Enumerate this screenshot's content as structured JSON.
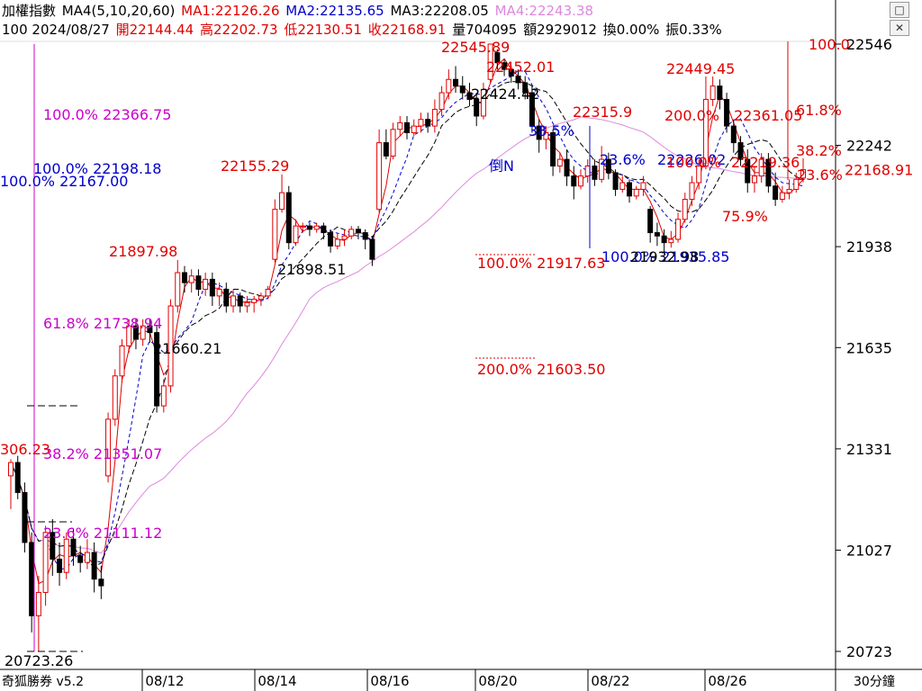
{
  "header": {
    "line1": {
      "name": "加權指數",
      "ma_label": "MA4(5,10,20,60)",
      "ma1": "MA1:22126.26",
      "ma2": "MA2:22135.65",
      "ma3": "MA3:22208.05",
      "ma4": "MA4:22243.38"
    },
    "line2": {
      "code_date": "100 2024/08/27",
      "open": "開22144.44",
      "high": "高22202.73",
      "low": "低22130.51",
      "close": "收22168.91",
      "volume": "量704095",
      "amount": "額2929012",
      "turnover": "換0.00%",
      "amplitude": "振0.33%"
    }
  },
  "window_icons": {
    "first": "square-icon",
    "second": "close-icon"
  },
  "footer": {
    "brand": "奇狐勝券 v5.2",
    "dates": [
      "08/12",
      "08/14",
      "08/16",
      "08/20",
      "08/22",
      "08/26"
    ],
    "period": "30分鐘"
  },
  "colors": {
    "up": "#e00000",
    "down": "#000000",
    "fib_magenta": "#cc00cc",
    "fib_blue": "#0000cc",
    "ma4_line": "#dd88dd",
    "axis": "#000000"
  },
  "chart_data": {
    "type": "candlestick",
    "interval": "30分鐘",
    "y_axis_ticks": [
      22546,
      22242,
      21938,
      21635,
      21331,
      21027,
      20723
    ],
    "ylim": [
      20723,
      22546
    ],
    "x_date_labels": [
      "08/12",
      "08/14",
      "08/16",
      "08/20",
      "08/22",
      "08/26"
    ],
    "last_price": "22168.91",
    "candles_approx": [
      [
        21250,
        21290,
        21150,
        21300
      ],
      [
        21290,
        21200,
        21180,
        21310
      ],
      [
        21200,
        21050,
        21020,
        21230
      ],
      [
        21050,
        20830,
        20780,
        21080
      ],
      [
        20830,
        20900,
        20723,
        20950
      ],
      [
        20900,
        21080,
        20860,
        21100
      ],
      [
        21080,
        21000,
        20950,
        21120
      ],
      [
        21000,
        20960,
        20920,
        21050
      ],
      [
        20960,
        21060,
        20940,
        21080
      ],
      [
        21060,
        21010,
        20980,
        21090
      ],
      [
        21010,
        20990,
        20960,
        21040
      ],
      [
        20990,
        21020,
        20970,
        21060
      ],
      [
        21020,
        20940,
        20900,
        21050
      ],
      [
        20940,
        20920,
        20880,
        20980
      ],
      [
        21250,
        21420,
        21230,
        21440
      ],
      [
        21420,
        21550,
        21400,
        21570
      ],
      [
        21550,
        21640,
        21530,
        21660
      ],
      [
        21640,
        21700,
        21620,
        21720
      ],
      [
        21700,
        21660,
        21630,
        21720
      ],
      [
        21660,
        21700,
        21640,
        21720
      ],
      [
        21700,
        21680,
        21650,
        21720
      ],
      [
        21680,
        21460,
        21440,
        21700
      ],
      [
        21460,
        21520,
        21440,
        21540
      ],
      [
        21520,
        21760,
        21500,
        21780
      ],
      [
        21760,
        21860,
        21740,
        21898
      ],
      [
        21860,
        21830,
        21800,
        21880
      ],
      [
        21830,
        21850,
        21800,
        21870
      ],
      [
        21850,
        21810,
        21790,
        21870
      ],
      [
        21810,
        21840,
        21790,
        21860
      ],
      [
        21840,
        21790,
        21760,
        21860
      ],
      [
        21790,
        21810,
        21760,
        21830
      ],
      [
        21810,
        21760,
        21740,
        21830
      ],
      [
        21760,
        21790,
        21740,
        21810
      ],
      [
        21790,
        21760,
        21740,
        21800
      ],
      [
        21760,
        21770,
        21740,
        21790
      ],
      [
        21770,
        21780,
        21740,
        21790
      ],
      [
        21780,
        21790,
        21760,
        21800
      ],
      [
        21790,
        21810,
        21780,
        21820
      ],
      [
        21900,
        22050,
        21890,
        22080
      ],
      [
        22050,
        22100,
        22040,
        22155
      ],
      [
        22100,
        21950,
        21930,
        22120
      ],
      [
        21950,
        22000,
        21940,
        22020
      ],
      [
        22000,
        22000,
        21980,
        22010
      ],
      [
        22000,
        21990,
        21970,
        22010
      ],
      [
        21990,
        22000,
        21980,
        22010
      ],
      [
        22000,
        21980,
        21960,
        22010
      ],
      [
        21980,
        21940,
        21920,
        21990
      ],
      [
        21940,
        21960,
        21930,
        21980
      ],
      [
        21960,
        21970,
        21940,
        21990
      ],
      [
        21970,
        21990,
        21960,
        22000
      ],
      [
        21990,
        21980,
        21960,
        22000
      ],
      [
        21980,
        21960,
        21930,
        21990
      ],
      [
        21960,
        21900,
        21880,
        21970
      ],
      [
        22050,
        22250,
        22040,
        22290
      ],
      [
        22250,
        22210,
        22200,
        22290
      ],
      [
        22210,
        22290,
        22200,
        22310
      ],
      [
        22290,
        22310,
        22270,
        22330
      ],
      [
        22310,
        22280,
        22260,
        22330
      ],
      [
        22280,
        22300,
        22270,
        22320
      ],
      [
        22300,
        22320,
        22280,
        22340
      ],
      [
        22320,
        22300,
        22280,
        22340
      ],
      [
        22300,
        22350,
        22280,
        22380
      ],
      [
        22350,
        22400,
        22330,
        22420
      ],
      [
        22400,
        22440,
        22380,
        22470
      ],
      [
        22440,
        22420,
        22400,
        22480
      ],
      [
        22420,
        22400,
        22380,
        22450
      ],
      [
        22400,
        22380,
        22360,
        22430
      ],
      [
        22380,
        22330,
        22300,
        22400
      ],
      [
        22330,
        22410,
        22320,
        22430
      ],
      [
        22440,
        22546,
        22430,
        22546
      ],
      [
        22520,
        22490,
        22470,
        22530
      ],
      [
        22490,
        22470,
        22450,
        22500
      ],
      [
        22470,
        22450,
        22430,
        22480
      ],
      [
        22450,
        22430,
        22410,
        22470
      ],
      [
        22430,
        22400,
        22380,
        22450
      ],
      [
        22400,
        22300,
        22280,
        22420
      ],
      [
        22300,
        22260,
        22220,
        22320
      ],
      [
        22260,
        22280,
        22230,
        22300
      ],
      [
        22280,
        22180,
        22150,
        22290
      ],
      [
        22180,
        22200,
        22160,
        22220
      ],
      [
        22200,
        22150,
        22120,
        22230
      ],
      [
        22150,
        22120,
        22080,
        22180
      ],
      [
        22120,
        22150,
        22110,
        22170
      ],
      [
        22150,
        22180,
        22130,
        22200
      ],
      [
        22180,
        22140,
        22120,
        22200
      ],
      [
        22140,
        22200,
        22130,
        22240
      ],
      [
        22200,
        22160,
        22140,
        22220
      ],
      [
        22160,
        22110,
        22090,
        22170
      ],
      [
        22110,
        22130,
        22100,
        22150
      ],
      [
        22130,
        22090,
        22070,
        22140
      ],
      [
        22090,
        22110,
        22080,
        22120
      ],
      [
        22110,
        22130,
        22090,
        22150
      ],
      [
        22050,
        21980,
        21950,
        22060
      ],
      [
        21980,
        21970,
        21940,
        22010
      ],
      [
        21970,
        21950,
        21920,
        21990
      ],
      [
        21950,
        21960,
        21935,
        21985
      ],
      [
        21960,
        22020,
        21950,
        22040
      ],
      [
        22020,
        22080,
        22010,
        22100
      ],
      [
        22080,
        22130,
        22060,
        22150
      ],
      [
        22130,
        22180,
        22110,
        22200
      ],
      [
        22180,
        22380,
        22170,
        22449
      ],
      [
        22380,
        22420,
        22360,
        22449
      ],
      [
        22420,
        22380,
        22350,
        22440
      ],
      [
        22380,
        22300,
        22280,
        22400
      ],
      [
        22300,
        22250,
        22220,
        22320
      ],
      [
        22250,
        22200,
        22180,
        22270
      ],
      [
        22200,
        22130,
        22100,
        22230
      ],
      [
        22130,
        22150,
        22100,
        22180
      ],
      [
        22150,
        22200,
        22130,
        22219
      ],
      [
        22200,
        22120,
        22100,
        22219
      ],
      [
        22120,
        22080,
        22060,
        22160
      ],
      [
        22080,
        22100,
        22070,
        22120
      ],
      [
        22100,
        22110,
        22080,
        22140
      ],
      [
        22110,
        22140,
        22100,
        22160
      ],
      [
        22144,
        22169,
        22131,
        22203
      ]
    ],
    "ma_lines": [
      {
        "name": "MA1",
        "value": "22126.26"
      },
      {
        "name": "MA2",
        "value": "22135.65"
      },
      {
        "name": "MA3",
        "value": "22208.05"
      },
      {
        "name": "MA4",
        "value": "22243.38"
      }
    ],
    "annotations": [
      {
        "text": "22545.89",
        "color": "up"
      },
      {
        "text": "22452.01",
        "color": "up"
      },
      {
        "text": "22424.42",
        "color": "down"
      },
      {
        "text": "22155.29",
        "color": "up"
      },
      {
        "text": "21897.98",
        "color": "up"
      },
      {
        "text": "21898.51",
        "color": "down"
      },
      {
        "text": "21660.21",
        "color": "down"
      },
      {
        "text": "22449.45",
        "color": "up"
      },
      {
        "text": "22361.05",
        "color": "up"
      },
      {
        "text": "22219.36",
        "color": "up"
      },
      {
        "text": "22315.9",
        "color": "up"
      },
      {
        "text": "306.23",
        "color": "up"
      },
      {
        "text": "20723.26",
        "color": "down"
      },
      {
        "text": "100.0% 22366.75",
        "color": "fib_magenta"
      },
      {
        "text": "61.8% 21738.94",
        "color": "fib_magenta"
      },
      {
        "text": "38.2% 21351.07",
        "color": "fib_magenta"
      },
      {
        "text": "23.6% 21111.12",
        "color": "fib_magenta"
      },
      {
        "text": "100.0% 22198.18",
        "color": "fib_blue"
      },
      {
        "text": "100.0% 22167.00",
        "color": "fib_blue"
      },
      {
        "text": "38.5%",
        "color": "fib_blue"
      },
      {
        "text": "23.6%",
        "color": "fib_blue"
      },
      {
        "text": "22226.02",
        "color": "fib_blue"
      },
      {
        "text": "倒N",
        "color": "fib_blue"
      },
      {
        "text": "100.0% 21935.85",
        "color": "fib_blue"
      },
      {
        "text": "21932.98",
        "color": "down"
      },
      {
        "text": "100.0% 21917.63",
        "color": "up"
      },
      {
        "text": "200.0% 21603.50",
        "color": "up"
      },
      {
        "text": "200.0%",
        "color": "up"
      },
      {
        "text": "100.0%",
        "color": "up"
      },
      {
        "text": "100.0",
        "color": "up"
      },
      {
        "text": "61.8%",
        "color": "up"
      },
      {
        "text": "38.2%",
        "color": "up"
      },
      {
        "text": "23.6%",
        "color": "up"
      },
      {
        "text": "75.9%",
        "color": "up"
      }
    ]
  }
}
